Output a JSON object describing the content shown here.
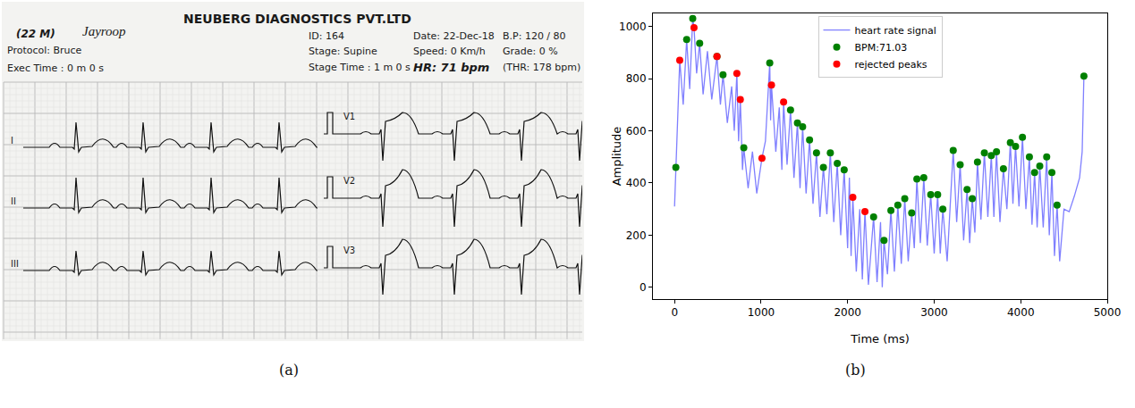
{
  "panel_a": {
    "patient": "(22 M)",
    "name": "Jayroop",
    "protocol": "Protocol: Bruce",
    "exec_time": "Exec Time : 0 m 0 s",
    "lab": "NEUBERG DIAGNOSTICS PVT.LTD",
    "id": "ID: 164",
    "stage": "Stage: Supine",
    "stage_time": "Stage Time : 1 m 0 s",
    "date": "Date: 22-Dec-18",
    "speed": "Speed: 0 Km/h",
    "hr": "HR: 71 bpm",
    "bp": "B.P: 120 / 80",
    "grade": "Grade: 0 %",
    "thr": "(THR: 178 bpm)",
    "limb_leads": [
      "I",
      "II",
      "III"
    ],
    "chest_leads": [
      "V1",
      "V2",
      "V3"
    ]
  },
  "panel_labels": [
    "(a)",
    "(b)"
  ],
  "chart_data": {
    "type": "line",
    "xlabel": "Time (ms)",
    "ylabel": "Amplitude",
    "xlim": [
      -250,
      5000
    ],
    "ylim": [
      -45,
      1050
    ],
    "xticks": [
      0,
      1000,
      2000,
      3000,
      4000,
      5000
    ],
    "yticks": [
      0,
      200,
      400,
      600,
      800,
      1000
    ],
    "grid": false,
    "legend": "upper center",
    "series": [
      {
        "name": "heart rate signal",
        "type": "line",
        "color": "#0000ff",
        "line_style": "solid",
        "x": [
          0,
          15,
          60,
          100,
          140,
          175,
          210,
          225,
          255,
          290,
          330,
          380,
          430,
          490,
          530,
          560,
          610,
          660,
          690,
          720,
          740,
          760,
          785,
          800,
          850,
          900,
          950,
          1010,
          1050,
          1100,
          1110,
          1120,
          1170,
          1210,
          1240,
          1260,
          1300,
          1340,
          1380,
          1420,
          1450,
          1480,
          1520,
          1560,
          1600,
          1640,
          1680,
          1720,
          1760,
          1800,
          1840,
          1880,
          1920,
          1960,
          2000,
          2020,
          2040,
          2060,
          2100,
          2140,
          2170,
          2200,
          2240,
          2300,
          2340,
          2380,
          2400,
          2420,
          2460,
          2500,
          2540,
          2580,
          2620,
          2660,
          2700,
          2740,
          2770,
          2800,
          2840,
          2880,
          2920,
          2960,
          3000,
          3040,
          3070,
          3100,
          3150,
          3220,
          3260,
          3300,
          3340,
          3380,
          3410,
          3440,
          3470,
          3500,
          3540,
          3580,
          3620,
          3660,
          3690,
          3720,
          3760,
          3800,
          3840,
          3880,
          3910,
          3940,
          3980,
          4020,
          4060,
          4100,
          4130,
          4160,
          4190,
          4220,
          4260,
          4300,
          4330,
          4360,
          4390,
          4420,
          4450,
          4500,
          4560,
          4620,
          4680,
          4710,
          4730
        ],
        "values": [
          310,
          460,
          870,
          700,
          950,
          760,
          1030,
          995,
          820,
          935,
          740,
          905,
          720,
          885,
          700,
          815,
          630,
          770,
          600,
          820,
          560,
          720,
          450,
          535,
          380,
          520,
          360,
          495,
          560,
          860,
          640,
          775,
          520,
          690,
          450,
          710,
          470,
          680,
          420,
          630,
          380,
          615,
          360,
          565,
          320,
          515,
          270,
          460,
          280,
          515,
          250,
          475,
          200,
          450,
          150,
          420,
          120,
          345,
          60,
          300,
          30,
          290,
          10,
          270,
          20,
          250,
          0,
          180,
          50,
          295,
          60,
          315,
          90,
          340,
          100,
          285,
          150,
          415,
          170,
          420,
          160,
          355,
          130,
          355,
          130,
          300,
          100,
          525,
          250,
          470,
          180,
          375,
          170,
          340,
          210,
          480,
          260,
          515,
          270,
          505,
          270,
          520,
          250,
          455,
          300,
          555,
          320,
          540,
          310,
          575,
          300,
          500,
          240,
          440,
          230,
          465,
          230,
          500,
          200,
          440,
          120,
          315,
          100,
          300,
          290,
          350,
          420,
          520,
          810
        ]
      },
      {
        "name": "BPM:71.03",
        "type": "scatter",
        "color": "#008000",
        "marker": "circle",
        "x": [
          15,
          140,
          210,
          290,
          490,
          560,
          800,
          1100,
          1340,
          1420,
          1480,
          1560,
          1640,
          1720,
          1800,
          1880,
          1960,
          2300,
          2420,
          2500,
          2580,
          2660,
          2740,
          2800,
          2880,
          2960,
          3040,
          3100,
          3220,
          3300,
          3380,
          3440,
          3500,
          3580,
          3660,
          3720,
          3800,
          3880,
          3940,
          4020,
          4100,
          4160,
          4220,
          4300,
          4360,
          4420,
          4730
        ],
        "values": [
          460,
          950,
          1030,
          935,
          885,
          815,
          535,
          860,
          680,
          630,
          615,
          565,
          515,
          460,
          515,
          475,
          450,
          270,
          180,
          295,
          315,
          340,
          285,
          415,
          420,
          355,
          355,
          300,
          525,
          470,
          375,
          340,
          480,
          515,
          505,
          520,
          455,
          555,
          540,
          575,
          500,
          440,
          465,
          500,
          440,
          315,
          810
        ]
      },
      {
        "name": "rejected peaks",
        "type": "scatter",
        "color": "#ff0000",
        "marker": "circle",
        "x": [
          60,
          225,
          490,
          720,
          760,
          1010,
          1120,
          1260,
          2060,
          2200
        ],
        "values": [
          870,
          995,
          885,
          820,
          720,
          495,
          775,
          710,
          345,
          290
        ]
      }
    ]
  }
}
